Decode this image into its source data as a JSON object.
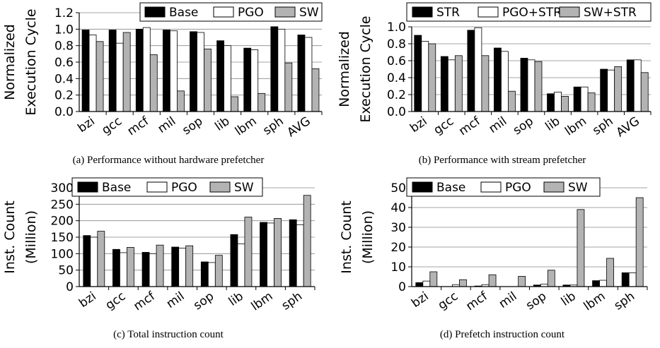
{
  "chart_data": [
    {
      "type": "bar",
      "caption": "(a) Performance without hardware prefetcher",
      "ylabel_lines": [
        "Normalized",
        "Execution Cycle"
      ],
      "categories": [
        "bzi",
        "gcc",
        "mcf",
        "mil",
        "sop",
        "lib",
        "lbm",
        "sph",
        "AVG"
      ],
      "series": [
        {
          "name": "Base",
          "color": "#000000",
          "values": [
            0.99,
            0.99,
            1.0,
            0.99,
            0.97,
            0.86,
            0.77,
            1.03,
            0.93
          ]
        },
        {
          "name": "PGO",
          "color": "#ffffff",
          "values": [
            0.93,
            0.83,
            1.02,
            0.98,
            0.96,
            0.8,
            0.75,
            1.0,
            0.9
          ]
        },
        {
          "name": "SW",
          "color": "#b3b3b3",
          "values": [
            0.85,
            0.96,
            0.69,
            0.25,
            0.76,
            0.18,
            0.22,
            0.59,
            0.52
          ]
        }
      ],
      "ylim": [
        0,
        1.2
      ],
      "yticks": [
        "0.0",
        "0.2",
        "0.4",
        "0.6",
        "0.8",
        "1.0",
        "1.2"
      ],
      "grid": true,
      "legend": "top-right"
    },
    {
      "type": "bar",
      "caption": "(b) Performance with stream prefetcher",
      "ylabel_lines": [
        "Normalized",
        "Execution Cycle"
      ],
      "categories": [
        "bzi",
        "gcc",
        "mcf",
        "mil",
        "sop",
        "lib",
        "lbm",
        "sph",
        "AVG"
      ],
      "series": [
        {
          "name": "STR",
          "color": "#000000",
          "values": [
            0.9,
            0.65,
            0.96,
            0.75,
            0.63,
            0.21,
            0.29,
            0.5,
            0.61
          ]
        },
        {
          "name": "PGO+STR",
          "color": "#ffffff",
          "values": [
            0.83,
            0.61,
            0.99,
            0.71,
            0.61,
            0.23,
            0.29,
            0.49,
            0.61
          ]
        },
        {
          "name": "SW+STR",
          "color": "#b3b3b3",
          "values": [
            0.8,
            0.66,
            0.66,
            0.24,
            0.59,
            0.18,
            0.22,
            0.53,
            0.46
          ]
        }
      ],
      "ylim": [
        0,
        1.0
      ],
      "yticks": [
        "0.0",
        "0.2",
        "0.4",
        "0.6",
        "0.8",
        "1.0"
      ],
      "grid": true,
      "legend": "top"
    },
    {
      "type": "bar",
      "caption": "(c) Total instruction count",
      "ylabel_lines": [
        "Inst. Count",
        "(Million)"
      ],
      "categories": [
        "bzi",
        "gcc",
        "mcf",
        "mil",
        "sop",
        "lib",
        "lbm",
        "sph"
      ],
      "series": [
        {
          "name": "Base",
          "color": "#000000",
          "values": [
            155,
            113,
            104,
            120,
            75,
            158,
            195,
            203
          ]
        },
        {
          "name": "PGO",
          "color": "#ffffff",
          "values": [
            150,
            103,
            100,
            117,
            73,
            130,
            193,
            188
          ]
        },
        {
          "name": "SW",
          "color": "#b3b3b3",
          "values": [
            168,
            119,
            126,
            124,
            95,
            211,
            207,
            277
          ]
        }
      ],
      "ylim": [
        0,
        300
      ],
      "yticks": [
        "0",
        "50",
        "100",
        "150",
        "200",
        "250",
        "300"
      ],
      "grid": true,
      "legend": "top"
    },
    {
      "type": "bar",
      "caption": "(d) Prefetch instruction count",
      "ylabel_lines": [
        "Inst. Count",
        "(Million)"
      ],
      "categories": [
        "bzi",
        "gcc",
        "mcf",
        "mil",
        "sop",
        "lib",
        "lbm",
        "sph"
      ],
      "series": [
        {
          "name": "Base",
          "color": "#000000",
          "values": [
            2.0,
            0.0,
            0.3,
            0.0,
            0.8,
            0.8,
            3.0,
            7.0
          ]
        },
        {
          "name": "PGO",
          "color": "#ffffff",
          "values": [
            2.8,
            1.0,
            1.0,
            0.0,
            1.2,
            0.8,
            3.2,
            7.0
          ]
        },
        {
          "name": "SW",
          "color": "#b3b3b3",
          "values": [
            7.5,
            3.5,
            6.0,
            5.2,
            8.3,
            39.0,
            14.3,
            45.0
          ]
        }
      ],
      "ylim": [
        0,
        50
      ],
      "yticks": [
        "0",
        "10",
        "20",
        "30",
        "40",
        "50"
      ],
      "grid": true,
      "legend": "top-left"
    }
  ]
}
